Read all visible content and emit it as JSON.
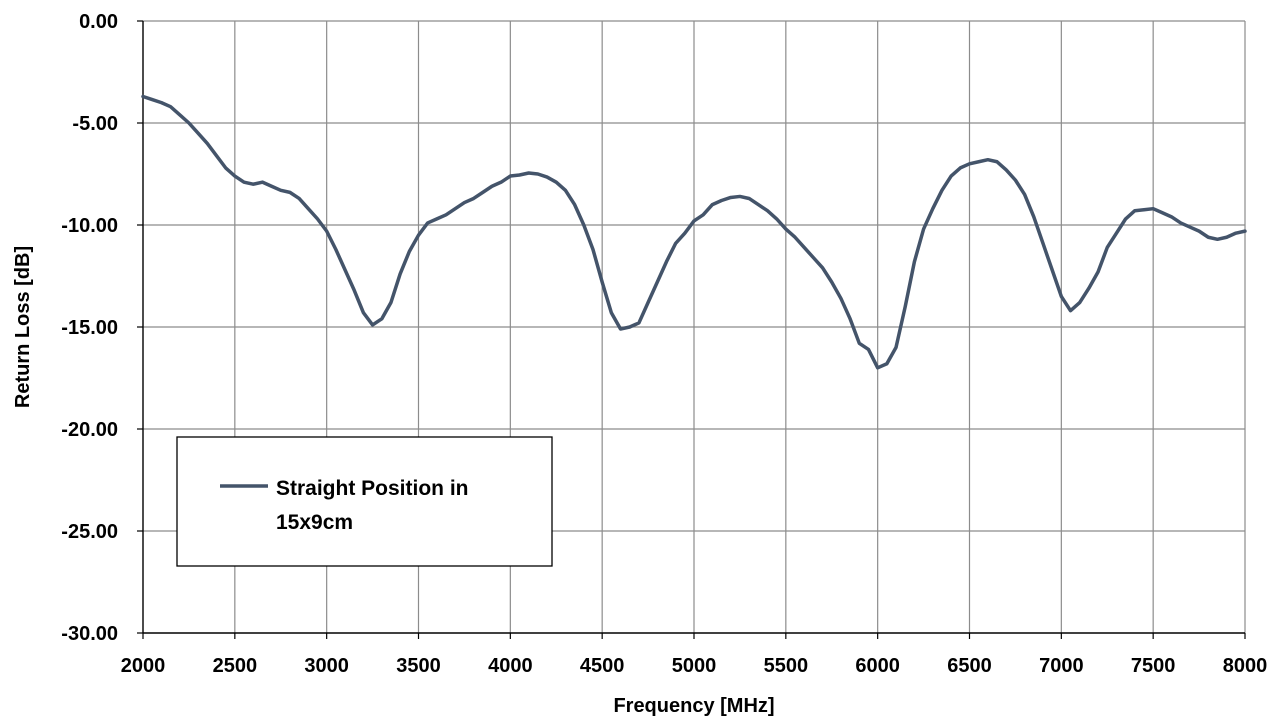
{
  "chart_data": {
    "type": "line",
    "title": "",
    "xlabel": "Frequency [MHz]",
    "ylabel": "Return Loss [dB]",
    "xlim": [
      2000,
      8000
    ],
    "ylim": [
      -30,
      0
    ],
    "x_ticks": [
      2000,
      2500,
      3000,
      3500,
      4000,
      4500,
      5000,
      5500,
      6000,
      6500,
      7000,
      7500,
      8000
    ],
    "x_tick_labels": [
      "2000",
      "2500",
      "3000",
      "3500",
      "4000",
      "4500",
      "5000",
      "5500",
      "6000",
      "6500",
      "7000",
      "7500",
      "8000"
    ],
    "y_ticks": [
      0,
      -5,
      -10,
      -15,
      -20,
      -25,
      -30
    ],
    "y_tick_labels": [
      "0.00",
      "-5.00",
      "-10.00",
      "-15.00",
      "-20.00",
      "-25.00",
      "-30.00"
    ],
    "grid": true,
    "legend": {
      "placement": "bottom-left",
      "lines": [
        "Straight Position in",
        "15x9cm"
      ]
    },
    "series": [
      {
        "name": "Straight Position in 15x9cm",
        "color": "#44546A",
        "points": [
          [
            2000,
            -3.7
          ],
          [
            2050,
            -3.85
          ],
          [
            2100,
            -4.0
          ],
          [
            2150,
            -4.2
          ],
          [
            2200,
            -4.6
          ],
          [
            2250,
            -5.0
          ],
          [
            2300,
            -5.5
          ],
          [
            2350,
            -6.0
          ],
          [
            2400,
            -6.6
          ],
          [
            2450,
            -7.2
          ],
          [
            2500,
            -7.6
          ],
          [
            2550,
            -7.9
          ],
          [
            2600,
            -8.0
          ],
          [
            2650,
            -7.9
          ],
          [
            2700,
            -8.1
          ],
          [
            2750,
            -8.3
          ],
          [
            2800,
            -8.4
          ],
          [
            2850,
            -8.7
          ],
          [
            2900,
            -9.2
          ],
          [
            2950,
            -9.7
          ],
          [
            3000,
            -10.3
          ],
          [
            3050,
            -11.2
          ],
          [
            3100,
            -12.2
          ],
          [
            3150,
            -13.2
          ],
          [
            3200,
            -14.3
          ],
          [
            3250,
            -14.9
          ],
          [
            3300,
            -14.6
          ],
          [
            3350,
            -13.8
          ],
          [
            3400,
            -12.4
          ],
          [
            3450,
            -11.3
          ],
          [
            3500,
            -10.5
          ],
          [
            3550,
            -9.9
          ],
          [
            3600,
            -9.7
          ],
          [
            3650,
            -9.5
          ],
          [
            3700,
            -9.2
          ],
          [
            3750,
            -8.9
          ],
          [
            3800,
            -8.7
          ],
          [
            3850,
            -8.4
          ],
          [
            3900,
            -8.1
          ],
          [
            3950,
            -7.9
          ],
          [
            4000,
            -7.6
          ],
          [
            4050,
            -7.55
          ],
          [
            4100,
            -7.45
          ],
          [
            4150,
            -7.5
          ],
          [
            4200,
            -7.65
          ],
          [
            4250,
            -7.9
          ],
          [
            4300,
            -8.3
          ],
          [
            4350,
            -9.0
          ],
          [
            4400,
            -10.0
          ],
          [
            4450,
            -11.2
          ],
          [
            4500,
            -12.8
          ],
          [
            4550,
            -14.3
          ],
          [
            4600,
            -15.1
          ],
          [
            4650,
            -15.0
          ],
          [
            4700,
            -14.8
          ],
          [
            4750,
            -13.8
          ],
          [
            4800,
            -12.8
          ],
          [
            4850,
            -11.8
          ],
          [
            4900,
            -10.9
          ],
          [
            4950,
            -10.4
          ],
          [
            5000,
            -9.8
          ],
          [
            5050,
            -9.5
          ],
          [
            5100,
            -9.0
          ],
          [
            5150,
            -8.8
          ],
          [
            5200,
            -8.65
          ],
          [
            5250,
            -8.6
          ],
          [
            5300,
            -8.7
          ],
          [
            5350,
            -9.0
          ],
          [
            5400,
            -9.3
          ],
          [
            5450,
            -9.7
          ],
          [
            5500,
            -10.2
          ],
          [
            5550,
            -10.6
          ],
          [
            5600,
            -11.1
          ],
          [
            5650,
            -11.6
          ],
          [
            5700,
            -12.1
          ],
          [
            5750,
            -12.8
          ],
          [
            5800,
            -13.6
          ],
          [
            5850,
            -14.6
          ],
          [
            5900,
            -15.8
          ],
          [
            5950,
            -16.1
          ],
          [
            6000,
            -17.0
          ],
          [
            6050,
            -16.8
          ],
          [
            6100,
            -16.0
          ],
          [
            6150,
            -14.0
          ],
          [
            6200,
            -11.8
          ],
          [
            6250,
            -10.2
          ],
          [
            6300,
            -9.2
          ],
          [
            6350,
            -8.3
          ],
          [
            6400,
            -7.6
          ],
          [
            6450,
            -7.2
          ],
          [
            6500,
            -7.0
          ],
          [
            6550,
            -6.9
          ],
          [
            6600,
            -6.8
          ],
          [
            6650,
            -6.9
          ],
          [
            6700,
            -7.3
          ],
          [
            6750,
            -7.8
          ],
          [
            6800,
            -8.5
          ],
          [
            6850,
            -9.6
          ],
          [
            6900,
            -10.9
          ],
          [
            6950,
            -12.2
          ],
          [
            7000,
            -13.5
          ],
          [
            7050,
            -14.2
          ],
          [
            7100,
            -13.8
          ],
          [
            7150,
            -13.1
          ],
          [
            7200,
            -12.3
          ],
          [
            7250,
            -11.1
          ],
          [
            7300,
            -10.4
          ],
          [
            7350,
            -9.7
          ],
          [
            7400,
            -9.3
          ],
          [
            7450,
            -9.25
          ],
          [
            7500,
            -9.2
          ],
          [
            7550,
            -9.4
          ],
          [
            7600,
            -9.6
          ],
          [
            7650,
            -9.9
          ],
          [
            7700,
            -10.1
          ],
          [
            7750,
            -10.3
          ],
          [
            7800,
            -10.6
          ],
          [
            7850,
            -10.7
          ],
          [
            7900,
            -10.6
          ],
          [
            7950,
            -10.4
          ],
          [
            8000,
            -10.3
          ]
        ]
      }
    ]
  }
}
